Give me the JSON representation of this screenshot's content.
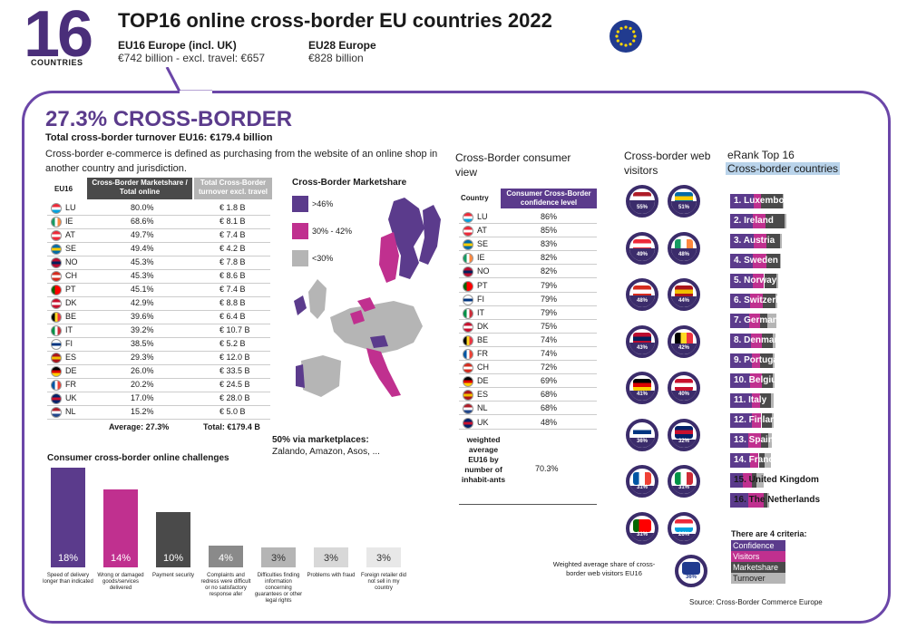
{
  "header": {
    "big_number": "16",
    "big_number_caption": "COUNTRIES",
    "title": "TOP16 online cross-border EU countries 2022",
    "eu16_label": "EU16 Europe (incl. UK)",
    "eu16_value": "€742 billion - excl. travel: €657",
    "eu28_label": "EU28 Europe",
    "eu28_value": "€828 billion"
  },
  "crossborder": {
    "title": "27.3% CROSS-BORDER",
    "subtitle": "Total cross-border turnover EU16: €179.4 billion",
    "definition": "Cross-border e-commerce is defined as purchasing from the website of an online shop in another country and jurisdiction."
  },
  "colors": {
    "purple": "#5b3b8c",
    "magenta": "#c0308f",
    "dark": "#4a4a4a",
    "grey": "#b5b5b5",
    "navy": "#3b2c6b"
  },
  "chart_data": [
    {
      "type": "table",
      "title": "",
      "columns": [
        "EU16",
        "Cross-Border Marketshare / Total online",
        "Total Cross-Border turnover excl. travel"
      ],
      "rows": [
        [
          "LU",
          "80.0%",
          "€ 1.8 B"
        ],
        [
          "IE",
          "68.6%",
          "€ 8.1 B"
        ],
        [
          "AT",
          "49.7%",
          "€ 7.4 B"
        ],
        [
          "SE",
          "49.4%",
          "€ 4.2 B"
        ],
        [
          "NO",
          "45.3%",
          "€ 7.8 B"
        ],
        [
          "CH",
          "45.3%",
          "€ 8.6 B"
        ],
        [
          "PT",
          "45.1%",
          "€ 7.4 B"
        ],
        [
          "DK",
          "42.9%",
          "€ 8.8 B"
        ],
        [
          "BE",
          "39.6%",
          "€ 6.4 B"
        ],
        [
          "IT",
          "39.2%",
          "€ 10.7 B"
        ],
        [
          "FI",
          "38.5%",
          "€ 5.2 B"
        ],
        [
          "ES",
          "29.3%",
          "€ 12.0 B"
        ],
        [
          "DE",
          "26.0%",
          "€ 33.5 B"
        ],
        [
          "FR",
          "20.2%",
          "€ 24.5 B"
        ],
        [
          "UK",
          "17.0%",
          "€ 28.0 B"
        ],
        [
          "NL",
          "15.2%",
          "€ 5.0 B"
        ]
      ],
      "footer": [
        "Average: 27.3%",
        "Total: €179.4 B"
      ]
    },
    {
      "type": "table",
      "title": "Cross-Border consumer view",
      "columns": [
        "Country",
        "Consumer Cross-Border confidence level"
      ],
      "rows": [
        [
          "LU",
          "86%"
        ],
        [
          "AT",
          "85%"
        ],
        [
          "SE",
          "83%"
        ],
        [
          "IE",
          "82%"
        ],
        [
          "NO",
          "82%"
        ],
        [
          "PT",
          "79%"
        ],
        [
          "FI",
          "79%"
        ],
        [
          "IT",
          "79%"
        ],
        [
          "DK",
          "75%"
        ],
        [
          "BE",
          "74%"
        ],
        [
          "FR",
          "74%"
        ],
        [
          "CH",
          "72%"
        ],
        [
          "DE",
          "69%"
        ],
        [
          "ES",
          "68%"
        ],
        [
          "NL",
          "68%"
        ],
        [
          "UK",
          "48%"
        ]
      ],
      "footer_label": "weighted average EU16 by number of inhabit-ants",
      "footer_value": "70.3%"
    },
    {
      "type": "bar",
      "title": "Consumer cross-border online challenges",
      "categories": [
        "Speed of delivery longer than indicated",
        "Wrong or damaged goods/services delivered",
        "Payment security",
        "Complaints and redress were difficult or no satisfactory response afer",
        "Difficulties finding information concerning guarantees or other legal rights",
        "Problems with fraud",
        "Foreign retailer did not sell in my country"
      ],
      "values": [
        18,
        14,
        10,
        4,
        3,
        3,
        3
      ],
      "value_labels": [
        "18%",
        "14%",
        "10%",
        "4%",
        "3%",
        "3%",
        "3%"
      ],
      "colors": [
        "#5b3b8c",
        "#c0308f",
        "#4a4a4a",
        "#8a8a8a",
        "#b5b5b5",
        "#d8d8d8",
        "#e8e8e8"
      ]
    },
    {
      "type": "pie",
      "title": "Cross-border web visitors",
      "items": [
        {
          "country": "NL",
          "value": 55,
          "label": "55%"
        },
        {
          "country": "SE",
          "value": 51,
          "label": "51%"
        },
        {
          "country": "AT",
          "value": 49,
          "label": "49%"
        },
        {
          "country": "IE",
          "value": 48,
          "label": "48%"
        },
        {
          "country": "CH",
          "value": 48,
          "label": "48%"
        },
        {
          "country": "ES",
          "value": 44,
          "label": "44%"
        },
        {
          "country": "NO",
          "value": 43,
          "label": "43%"
        },
        {
          "country": "BE",
          "value": 42,
          "label": "42%"
        },
        {
          "country": "DE",
          "value": 41,
          "label": "41%"
        },
        {
          "country": "DK",
          "value": 40,
          "label": "40%"
        },
        {
          "country": "FI",
          "value": 36,
          "label": "36%"
        },
        {
          "country": "UK",
          "value": 32,
          "label": "32%"
        },
        {
          "country": "FR",
          "value": 31,
          "label": "31%"
        },
        {
          "country": "IT",
          "value": 31,
          "label": "31%"
        },
        {
          "country": "PT",
          "value": 31,
          "label": "31%"
        },
        {
          "country": "LU",
          "value": 26,
          "label": "26%"
        }
      ],
      "average_caption": "Weighted average share of cross-border web visitors EU16",
      "average": {
        "value": 36,
        "label": "36%"
      }
    },
    {
      "type": "bar",
      "title": "eRank Top 16",
      "subtitle": "Cross-border countries",
      "categories": [
        "1. Luxembourg",
        "2. Ireland",
        "3. Austria",
        "4. Sweden",
        "5. Norway",
        "6. Switzerland",
        "7. Germany",
        "8. Denmark",
        "9. Portugal",
        "10. Belgium",
        "11. Italy",
        "12. Finland",
        "13. Spain",
        "14. France",
        "15. United Kingdom",
        "16. The Netherlands"
      ],
      "series": [
        {
          "name": "Confidence",
          "values": [
            86,
            82,
            85,
            83,
            82,
            72,
            69,
            75,
            79,
            74,
            79,
            79,
            68,
            74,
            48,
            68
          ]
        },
        {
          "name": "Visitors",
          "values": [
            26,
            48,
            49,
            51,
            43,
            48,
            41,
            40,
            31,
            42,
            31,
            36,
            44,
            31,
            32,
            55
          ]
        },
        {
          "name": "Marketshare",
          "values": [
            80,
            69,
            50,
            49,
            45,
            45,
            26,
            43,
            45,
            40,
            39,
            39,
            29,
            20,
            17,
            15
          ]
        },
        {
          "name": "Turnover",
          "values": [
            2,
            8,
            7,
            4,
            8,
            9,
            34,
            9,
            7,
            6,
            11,
            5,
            12,
            25,
            28,
            5
          ]
        }
      ],
      "criteria_title": "There are 4 criteria:"
    }
  ],
  "map": {
    "title": "Cross-Border Marketshare",
    "legend": [
      {
        "label": ">46%",
        "color": "#5b3b8c"
      },
      {
        "label": "30% - 42%",
        "color": "#c0308f"
      },
      {
        "label": "<30%",
        "color": "#b5b5b5"
      }
    ],
    "marketplaces_title": "50% via marketplaces:",
    "marketplaces_list": "Zalando, Amazon, Asos, ..."
  },
  "icons": [
    "eu-flag-icon",
    "country-flag-icon"
  ],
  "source": "Source: Cross-Border Commerce Europe"
}
